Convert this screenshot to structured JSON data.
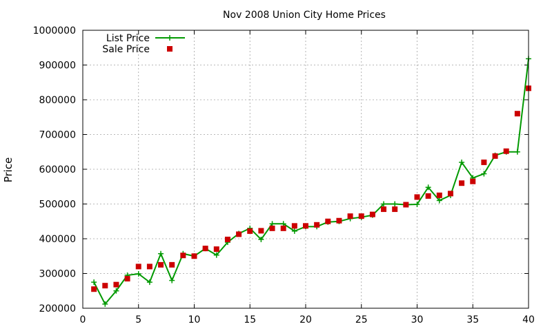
{
  "chart_data": {
    "type": "line",
    "title": "Nov 2008 Union City Home Prices",
    "xlabel": "",
    "ylabel": "Price",
    "xlim": [
      0,
      40
    ],
    "ylim": [
      200000,
      1000000
    ],
    "xticks": [
      0,
      5,
      10,
      15,
      20,
      25,
      30,
      35,
      40
    ],
    "yticks": [
      200000,
      300000,
      400000,
      500000,
      600000,
      700000,
      800000,
      900000,
      1000000
    ],
    "grid": true,
    "legend_position": "top-left",
    "series": [
      {
        "name": "List Price",
        "style": "line+cross",
        "color": "#009900",
        "x": [
          1,
          2,
          3,
          4,
          5,
          6,
          7,
          8,
          9,
          10,
          11,
          12,
          13,
          14,
          15,
          16,
          17,
          18,
          19,
          20,
          21,
          22,
          23,
          24,
          25,
          26,
          27,
          28,
          29,
          30,
          31,
          32,
          33,
          34,
          35,
          36,
          37,
          38,
          39,
          40
        ],
        "values": [
          275000,
          212000,
          250000,
          295000,
          299000,
          275000,
          357000,
          280000,
          357000,
          350000,
          372000,
          353000,
          390000,
          415000,
          430000,
          398000,
          443000,
          443000,
          422000,
          435000,
          435000,
          448000,
          450000,
          458000,
          462000,
          468000,
          500000,
          500000,
          498000,
          499000,
          548000,
          510000,
          525000,
          620000,
          575000,
          587000,
          640000,
          650000,
          650000,
          918000
        ]
      },
      {
        "name": "Sale Price",
        "style": "points",
        "color": "#cc0000",
        "x": [
          1,
          2,
          3,
          4,
          5,
          6,
          7,
          8,
          9,
          10,
          11,
          12,
          13,
          14,
          15,
          16,
          17,
          18,
          19,
          20,
          21,
          22,
          23,
          24,
          25,
          26,
          27,
          28,
          29,
          30,
          31,
          32,
          33,
          34,
          35,
          36,
          37,
          38,
          39,
          40
        ],
        "values": [
          255000,
          265000,
          268000,
          285000,
          320000,
          320000,
          325000,
          325000,
          352000,
          350000,
          372000,
          370000,
          398000,
          413000,
          422000,
          423000,
          430000,
          430000,
          437000,
          437000,
          440000,
          450000,
          452000,
          465000,
          465000,
          470000,
          485000,
          485000,
          498000,
          520000,
          523000,
          525000,
          530000,
          560000,
          565000,
          620000,
          638000,
          652000,
          760000,
          833000
        ]
      }
    ]
  }
}
